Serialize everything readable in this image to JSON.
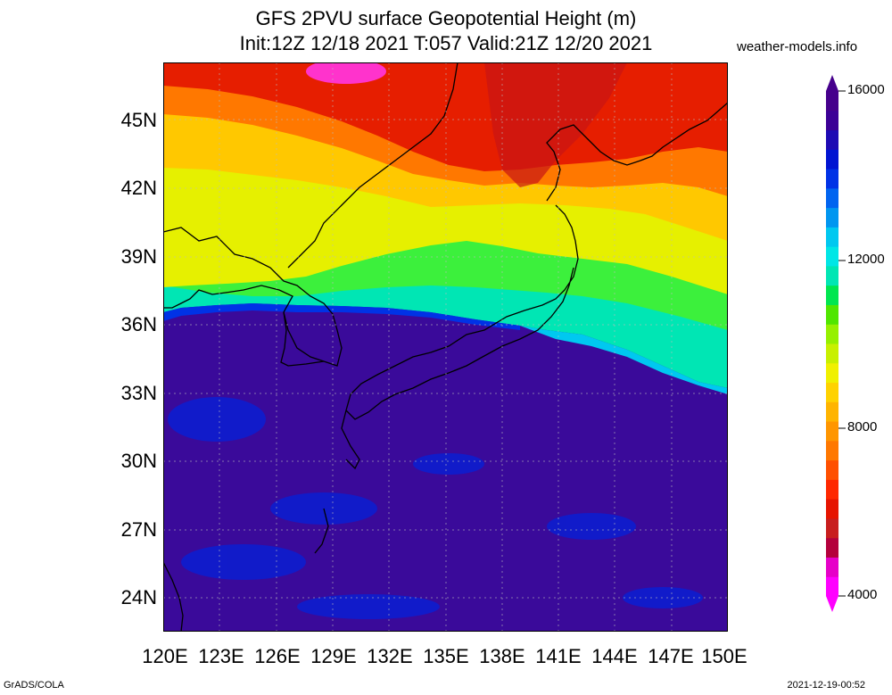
{
  "title_line1": "GFS 2PVU surface Geopotential Height (m)",
  "title_line2": "Init:12Z 12/18 2021 T:057 Valid:21Z 12/20 2021",
  "site": "weather-models.info",
  "footer_left": "GrADS/COLA",
  "footer_right": "2021-12-19-00:52",
  "lat_labels": [
    "45N",
    "42N",
    "39N",
    "36N",
    "33N",
    "30N",
    "27N",
    "24N"
  ],
  "lon_labels": [
    "120E",
    "123E",
    "126E",
    "129E",
    "132E",
    "135E",
    "138E",
    "141E",
    "144E",
    "147E",
    "150E"
  ],
  "colorbar": {
    "labels": [
      "16000",
      "12000",
      "8000",
      "4000"
    ],
    "colors": [
      "#ff00ff",
      "#e600c8",
      "#b4003c",
      "#c81e1e",
      "#e61400",
      "#ff2800",
      "#ff5000",
      "#ff7800",
      "#ff9600",
      "#ffb400",
      "#ffd200",
      "#f0f000",
      "#c8f000",
      "#96f000",
      "#50e600",
      "#00e650",
      "#00e6b4",
      "#00e6e6",
      "#00c8f0",
      "#0096f0",
      "#0064f0",
      "#0032e6",
      "#0014d2",
      "#1e0ab4",
      "#3c0096",
      "#46008c"
    ]
  },
  "colors": {
    "deep": "#3a0a9a",
    "red": "#e61e00",
    "orange": "#ff6a00",
    "yellow": "#ffe600",
    "green": "#3cf03c",
    "cyan": "#00e6c8",
    "magenta": "#ff33cc"
  }
}
